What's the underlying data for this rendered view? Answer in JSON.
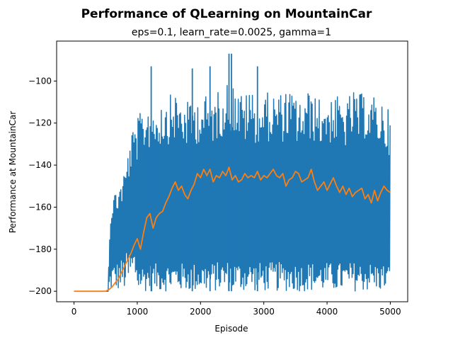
{
  "chart_data": {
    "type": "line",
    "title": "Performance of QLearning on MountainCar",
    "subtitle": "eps=0.1, learn_rate=0.0025, gamma=1",
    "xlabel": "Episode",
    "ylabel": "Performance at MountainCar",
    "xlim": [
      -275,
      5275
    ],
    "ylim": [
      -205,
      -81
    ],
    "xticks": [
      0,
      1000,
      2000,
      3000,
      4000,
      5000
    ],
    "yticks": [
      -200,
      -180,
      -160,
      -140,
      -120,
      -100
    ],
    "grid": false,
    "legend": "none",
    "series": [
      {
        "color": "#1f77b4",
        "description": "per-episode performance (noisy envelope)",
        "envelope": {
          "x": [
            0,
            540,
            560,
            600,
            700,
            800,
            900,
            1000,
            1100,
            1200,
            1300,
            1400,
            1500,
            1600,
            1700,
            1800,
            1900,
            2000,
            2100,
            2200,
            2300,
            2400,
            2500,
            2600,
            2700,
            2800,
            2900,
            3000,
            3100,
            3200,
            3300,
            3400,
            3500,
            3600,
            3700,
            3800,
            3900,
            4000,
            4100,
            4200,
            4300,
            4400,
            4500,
            4600,
            4700,
            4800,
            4900,
            5000
          ],
          "upper": [
            -200,
            -200,
            -169,
            -154,
            -150,
            -142,
            -125,
            -118,
            -112,
            -110,
            -110,
            -108,
            -107,
            -105,
            -108,
            -110,
            -108,
            -106,
            -107,
            -107,
            -104,
            -100,
            -100,
            -104,
            -107,
            -103,
            -108,
            -105,
            -106,
            -105,
            -106,
            -104,
            -107,
            -109,
            -105,
            -106,
            -109,
            -106,
            -108,
            -107,
            -110,
            -104,
            -107,
            -104,
            -107,
            -108,
            -110,
            -115
          ],
          "lower": [
            -200,
            -200,
            -200,
            -200,
            -200,
            -200,
            -200,
            -200,
            -200,
            -200,
            -200,
            -200,
            -200,
            -200,
            -200,
            -200,
            -200,
            -200,
            -200,
            -200,
            -200,
            -200,
            -200,
            -200,
            -200,
            -200,
            -200,
            -200,
            -200,
            -200,
            -200,
            -200,
            -200,
            -200,
            -200,
            -200,
            -200,
            -200,
            -200,
            -200,
            -200,
            -200,
            -200,
            -200,
            -200,
            -200,
            -200,
            -200
          ]
        },
        "spikes": [
          {
            "x": 1220,
            "y": -93
          },
          {
            "x": 1870,
            "y": -94
          },
          {
            "x": 2150,
            "y": -93
          },
          {
            "x": 2450,
            "y": -87
          },
          {
            "x": 2490,
            "y": -87
          },
          {
            "x": 2900,
            "y": -93
          }
        ]
      },
      {
        "color": "#ff7f0e",
        "description": "moving average",
        "x": [
          0,
          500,
          560,
          600,
          650,
          700,
          750,
          800,
          850,
          900,
          950,
          1000,
          1050,
          1100,
          1150,
          1200,
          1250,
          1300,
          1350,
          1400,
          1450,
          1500,
          1550,
          1600,
          1650,
          1700,
          1750,
          1800,
          1850,
          1900,
          1950,
          2000,
          2050,
          2100,
          2150,
          2200,
          2250,
          2300,
          2350,
          2400,
          2450,
          2500,
          2550,
          2600,
          2650,
          2700,
          2750,
          2800,
          2850,
          2900,
          2950,
          3000,
          3050,
          3100,
          3150,
          3200,
          3250,
          3300,
          3350,
          3400,
          3450,
          3500,
          3550,
          3600,
          3650,
          3700,
          3750,
          3800,
          3850,
          3900,
          3950,
          4000,
          4050,
          4100,
          4150,
          4200,
          4250,
          4300,
          4350,
          4400,
          4450,
          4500,
          4550,
          4600,
          4650,
          4700,
          4750,
          4800,
          4850,
          4900,
          4950,
          5000
        ],
        "y": [
          -200,
          -200,
          -199,
          -198,
          -196,
          -194,
          -191,
          -188,
          -185,
          -182,
          -178,
          -175,
          -180,
          -172,
          -165,
          -163,
          -170,
          -165,
          -163,
          -162,
          -158,
          -155,
          -151,
          -148,
          -152,
          -150,
          -154,
          -156,
          -152,
          -149,
          -144,
          -146,
          -142,
          -145,
          -142,
          -148,
          -145,
          -146,
          -143,
          -145,
          -141,
          -147,
          -145,
          -148,
          -147,
          -144,
          -146,
          -145,
          -146,
          -143,
          -147,
          -145,
          -146,
          -144,
          -142,
          -145,
          -146,
          -144,
          -150,
          -147,
          -146,
          -143,
          -144,
          -148,
          -147,
          -146,
          -142,
          -148,
          -152,
          -150,
          -148,
          -152,
          -149,
          -146,
          -150,
          -153,
          -150,
          -154,
          -151,
          -155,
          -153,
          -152,
          -151,
          -156,
          -154,
          -158,
          -152,
          -157,
          -153,
          -150,
          -152,
          -153
        ]
      }
    ]
  }
}
